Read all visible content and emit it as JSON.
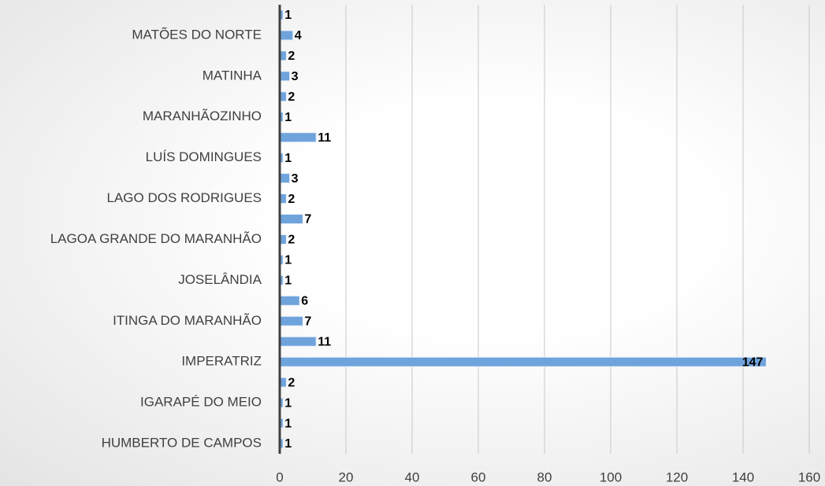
{
  "chart_data": {
    "type": "bar",
    "orientation": "horizontal",
    "categories": [
      null,
      "MATÕES DO NORTE",
      null,
      "MATINHA",
      null,
      "MARANHÃOZINHO",
      null,
      "LUÍS DOMINGUES",
      null,
      "LAGO DOS RODRIGUES",
      null,
      "LAGOA GRANDE DO MARANHÃO",
      null,
      "JOSELÂNDIA",
      null,
      "ITINGA DO MARANHÃO",
      null,
      "IMPERATRIZ",
      null,
      "IGARAPÉ DO MEIO",
      null,
      "HUMBERTO DE CAMPOS"
    ],
    "values": [
      1,
      4,
      2,
      3,
      2,
      1,
      11,
      1,
      3,
      2,
      7,
      2,
      1,
      1,
      6,
      7,
      11,
      147,
      2,
      1,
      1,
      1
    ],
    "color": "#6fa3dc",
    "xlim": [
      0,
      160
    ],
    "xticks": [
      0,
      20,
      40,
      60,
      80,
      100,
      120,
      140,
      160
    ],
    "grid": true
  }
}
